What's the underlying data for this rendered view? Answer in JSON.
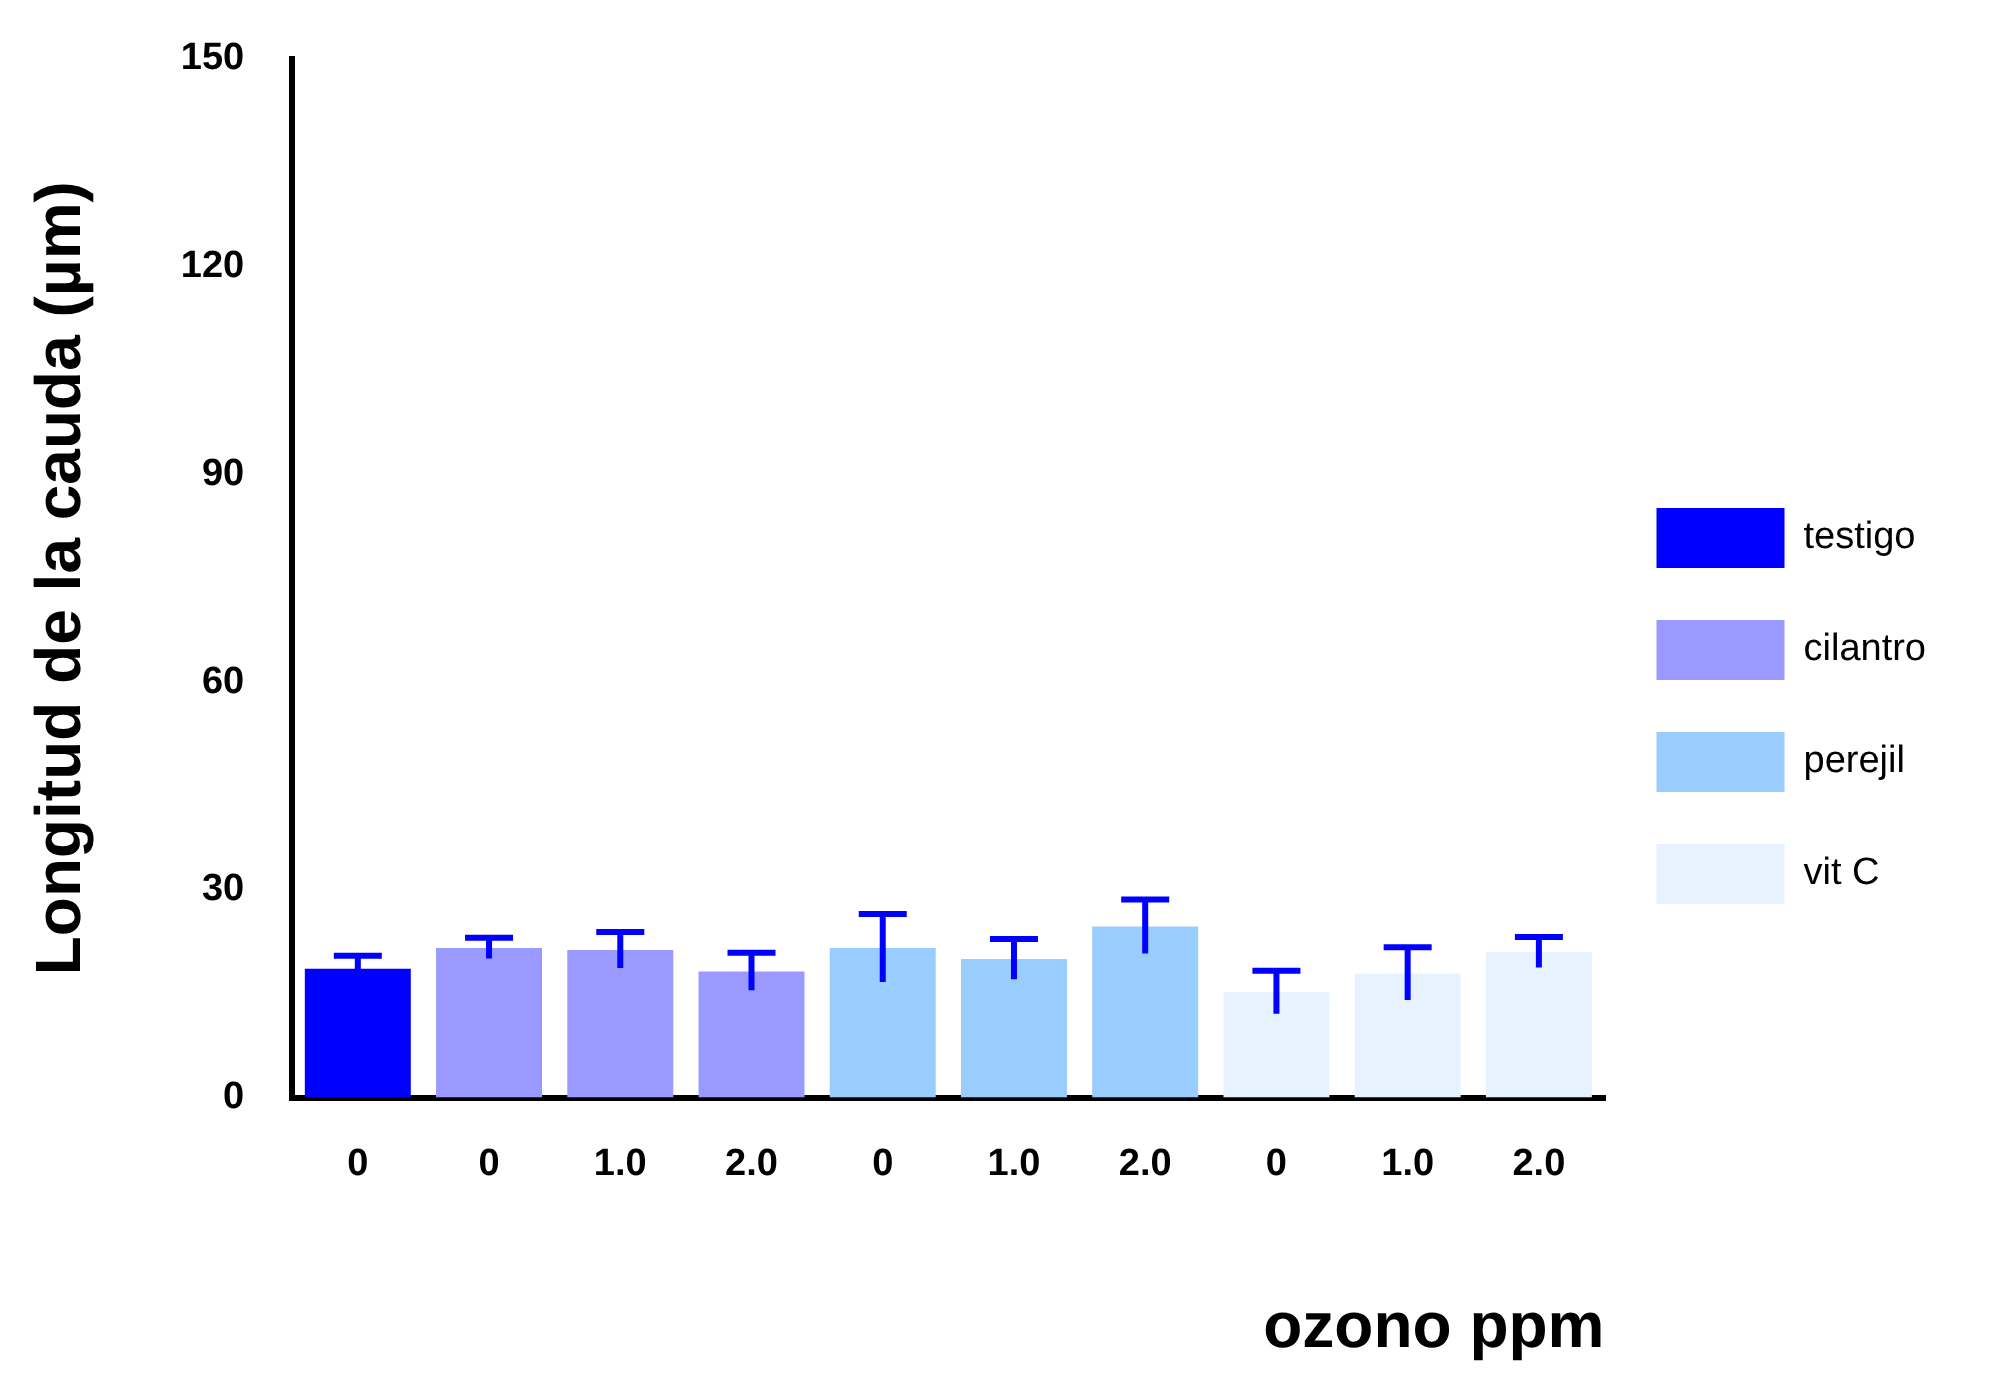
{
  "chart_data": {
    "type": "bar",
    "xlabel": "ozono ppm",
    "ylabel": "Longitud de la cauda (µm)",
    "categories": [
      "0",
      "0",
      "1.0",
      "2.0",
      "0",
      "1.0",
      "2.0",
      "0",
      "1.0",
      "2.0"
    ],
    "series": [
      {
        "name": "testigo",
        "color": "#0000ff",
        "values": [
          18.6,
          null,
          null,
          null,
          null,
          null,
          null,
          null,
          null,
          null
        ],
        "errors": [
          1.9,
          null,
          null,
          null,
          null,
          null,
          null,
          null,
          null,
          null
        ]
      },
      {
        "name": "cilantro",
        "color": "#9999ff",
        "values": [
          null,
          21.6,
          21.3,
          18.2,
          null,
          null,
          null,
          null,
          null,
          null
        ],
        "errors": [
          null,
          1.5,
          2.6,
          2.7,
          null,
          null,
          null,
          null,
          null,
          null
        ]
      },
      {
        "name": "perejil",
        "color": "#99ccff",
        "values": [
          null,
          null,
          null,
          null,
          21.6,
          20.0,
          24.7,
          null,
          null,
          null
        ],
        "errors": [
          null,
          null,
          null,
          null,
          4.9,
          2.9,
          3.9,
          null,
          null,
          null
        ]
      },
      {
        "name": "vit C",
        "color": "#e6f2ff",
        "values": [
          null,
          null,
          null,
          null,
          null,
          null,
          null,
          15.2,
          17.9,
          21.0
        ],
        "errors": [
          null,
          null,
          null,
          null,
          null,
          null,
          null,
          3.1,
          3.8,
          2.2
        ]
      }
    ],
    "ylim": [
      0,
      150
    ],
    "yticks": [
      0,
      30,
      60,
      90,
      120,
      150
    ],
    "grid": false,
    "legend": "right"
  }
}
